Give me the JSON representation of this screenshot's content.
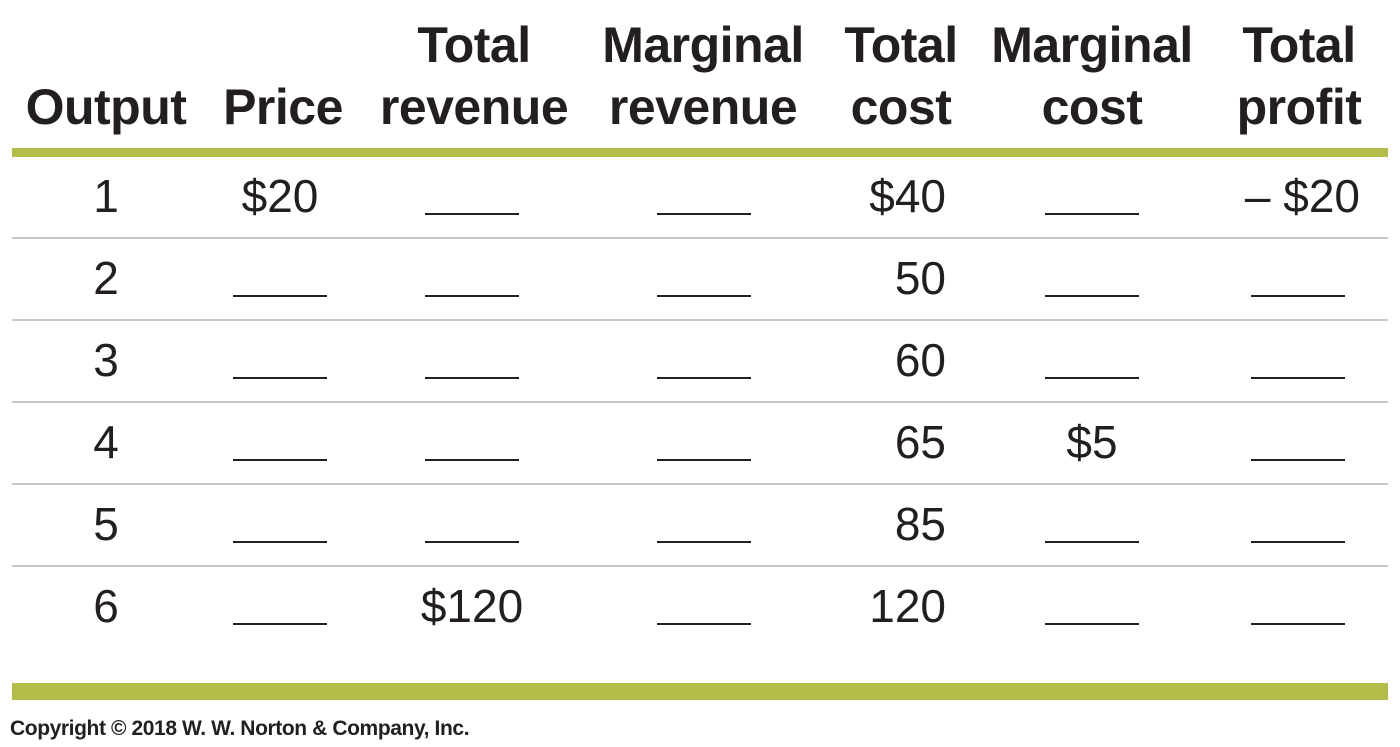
{
  "table": {
    "columns": [
      {
        "key": "output",
        "line1": "",
        "line2": "Output"
      },
      {
        "key": "price",
        "line1": "",
        "line2": "Price"
      },
      {
        "key": "total_revenue",
        "line1": "Total",
        "line2": "revenue"
      },
      {
        "key": "marginal_revenue",
        "line1": "Marginal",
        "line2": "revenue"
      },
      {
        "key": "total_cost",
        "line1": "Total",
        "line2": "cost"
      },
      {
        "key": "marginal_cost",
        "line1": "Marginal",
        "line2": "cost"
      },
      {
        "key": "total_profit",
        "line1": "Total",
        "line2": "profit"
      }
    ],
    "rows": [
      {
        "output": "1",
        "price": "$20",
        "total_revenue": "",
        "marginal_revenue": "",
        "total_cost": "$40",
        "marginal_cost": "",
        "total_profit": "– $20"
      },
      {
        "output": "2",
        "price": "",
        "total_revenue": "",
        "marginal_revenue": "",
        "total_cost": "50",
        "marginal_cost": "",
        "total_profit": ""
      },
      {
        "output": "3",
        "price": "",
        "total_revenue": "",
        "marginal_revenue": "",
        "total_cost": "60",
        "marginal_cost": "",
        "total_profit": ""
      },
      {
        "output": "4",
        "price": "",
        "total_revenue": "",
        "marginal_revenue": "",
        "total_cost": "65",
        "marginal_cost": "$5",
        "total_profit": ""
      },
      {
        "output": "5",
        "price": "",
        "total_revenue": "",
        "marginal_revenue": "",
        "total_cost": "85",
        "marginal_cost": "",
        "total_profit": ""
      },
      {
        "output": "6",
        "price": "",
        "total_revenue": "$120",
        "marginal_revenue": "",
        "total_cost": "120",
        "marginal_cost": "",
        "total_profit": ""
      }
    ]
  },
  "copyright": "Copyright © 2018 W. W. Norton & Company, Inc.",
  "colors": {
    "accent": "#b4bd4a",
    "text": "#231f20",
    "row_rule": "#c8c8c8"
  }
}
